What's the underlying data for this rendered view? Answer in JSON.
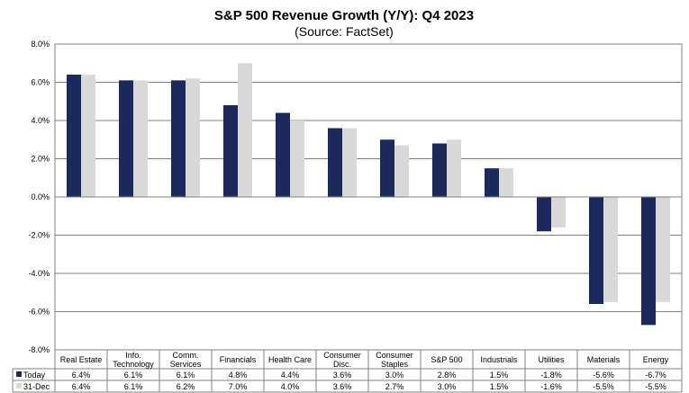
{
  "chart_data": {
    "type": "bar",
    "title": "S&P 500 Revenue Growth (Y/Y): Q4 2023",
    "subtitle": "(Source: FactSet)",
    "categories": [
      [
        "Real Estate"
      ],
      [
        "Info.",
        "Technology"
      ],
      [
        "Comm.",
        "Services"
      ],
      [
        "Financials"
      ],
      [
        "Health Care"
      ],
      [
        "Consumer",
        "Disc."
      ],
      [
        "Consumer",
        "Staples"
      ],
      [
        "S&P 500"
      ],
      [
        "Industrials"
      ],
      [
        "Utilities"
      ],
      [
        "Materials"
      ],
      [
        "Energy"
      ]
    ],
    "series": [
      {
        "name": "Today",
        "color": "#1b2a5a",
        "values": [
          6.4,
          6.1,
          6.1,
          4.8,
          4.4,
          3.6,
          3.0,
          2.8,
          1.5,
          -1.8,
          -5.6,
          -6.7
        ],
        "labels": [
          "6.4%",
          "6.1%",
          "6.1%",
          "4.8%",
          "4.4%",
          "3.6%",
          "3.0%",
          "2.8%",
          "1.5%",
          "-1.8%",
          "-5.6%",
          "-6.7%"
        ]
      },
      {
        "name": "31-Dec",
        "color": "#d9d9d9",
        "values": [
          6.4,
          6.1,
          6.2,
          7.0,
          4.0,
          3.6,
          2.7,
          3.0,
          1.5,
          -1.6,
          -5.5,
          -5.5
        ],
        "labels": [
          "6.4%",
          "6.1%",
          "6.2%",
          "7.0%",
          "4.0%",
          "3.6%",
          "2.7%",
          "3.0%",
          "1.5%",
          "-1.6%",
          "-5.5%",
          "-5.5%"
        ]
      }
    ],
    "ylim": [
      -8.0,
      8.0
    ],
    "yticks": [
      8.0,
      6.0,
      4.0,
      2.0,
      0.0,
      -2.0,
      -4.0,
      -6.0,
      -8.0
    ],
    "ytick_labels": [
      "8.0%",
      "6.0%",
      "4.0%",
      "2.0%",
      "0.0%",
      "-2.0%",
      "-4.0%",
      "-6.0%",
      "-8.0%"
    ],
    "grid": true,
    "legend": "data-table"
  }
}
